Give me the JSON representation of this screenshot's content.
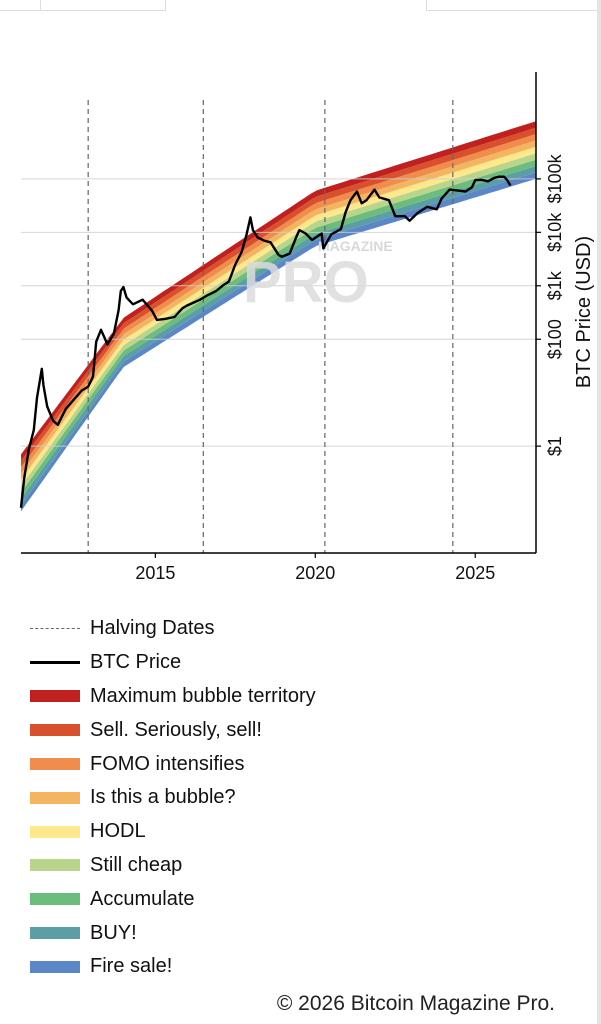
{
  "chart_data": {
    "type": "area",
    "title": "",
    "ylabel": "BTC Price (USD)",
    "y_scale": "log",
    "y_tick_labels": [
      "$1",
      "$100",
      "$1k",
      "$10k",
      "$100k"
    ],
    "y_tick_values": [
      1,
      100,
      1000,
      10000,
      100000
    ],
    "x_tick_labels": [
      "2015",
      "2020",
      "2025"
    ],
    "x_tick_values": [
      2015,
      2020,
      2025
    ],
    "xlim": [
      2010.8,
      2026.9
    ],
    "ylim": [
      0.01,
      10000000
    ],
    "halving_dates": [
      2012.9,
      2016.5,
      2020.3,
      2024.3
    ],
    "watermark": {
      "line1": "MAGAZINE",
      "line2": "PRO"
    },
    "rainbow": {
      "anchors": [
        [
          2010.8,
          0.06,
          0.7
        ],
        [
          2014.0,
          30,
          250
        ],
        [
          2020.0,
          5500,
          60000
        ],
        [
          2026.9,
          100000,
          1200000
        ]
      ],
      "bands": [
        "Fire sale!",
        "BUY!",
        "Accumulate",
        "Still cheap",
        "HODL",
        "Is this a bubble?",
        "FOMO intensifies",
        "Sell. Seriously, sell!",
        "Maximum bubble territory"
      ]
    },
    "series": [
      {
        "name": "BTC Price",
        "x": [
          2010.8,
          2010.9,
          2011.05,
          2011.2,
          2011.3,
          2011.45,
          2011.5,
          2011.62,
          2011.8,
          2011.95,
          2012.2,
          2012.5,
          2012.7,
          2012.9,
          2013.05,
          2013.15,
          2013.3,
          2013.4,
          2013.5,
          2013.7,
          2013.85,
          2013.92,
          2014.0,
          2014.1,
          2014.3,
          2014.6,
          2014.9,
          2015.05,
          2015.3,
          2015.6,
          2015.85,
          2016.0,
          2016.4,
          2016.6,
          2016.9,
          2017.1,
          2017.3,
          2017.5,
          2017.7,
          2017.85,
          2017.97,
          2018.05,
          2018.2,
          2018.4,
          2018.6,
          2018.85,
          2018.95,
          2019.2,
          2019.4,
          2019.5,
          2019.7,
          2019.9,
          2020.2,
          2020.25,
          2020.5,
          2020.8,
          2020.95,
          2021.1,
          2021.3,
          2021.45,
          2021.6,
          2021.85,
          2022.0,
          2022.3,
          2022.5,
          2022.8,
          2022.95,
          2023.2,
          2023.5,
          2023.8,
          2023.95,
          2024.2,
          2024.5,
          2024.7,
          2024.9,
          2025.0,
          2025.2,
          2025.4,
          2025.6,
          2025.75,
          2025.9,
          2026.0,
          2026.1
        ],
        "y": [
          0.07,
          0.25,
          0.9,
          2.0,
          8.0,
          28.0,
          14.0,
          5.5,
          3.0,
          2.5,
          5.0,
          8.0,
          11.0,
          13.0,
          20.0,
          90.0,
          150.0,
          110.0,
          80.0,
          125.0,
          350.0,
          800.0,
          950.0,
          600.0,
          450.0,
          550.0,
          340.0,
          230.0,
          240.0,
          260.0,
          380.0,
          430.0,
          550.0,
          650.0,
          800.0,
          1000.0,
          1200.0,
          2500.0,
          4300.0,
          9000.0,
          19000.0,
          11000.0,
          8000.0,
          7000.0,
          6500.0,
          3800.0,
          3500.0,
          4000.0,
          8000.0,
          11000.0,
          9500.0,
          7200.0,
          9500.0,
          5000.0,
          9200.0,
          11500.0,
          24000.0,
          40000.0,
          58000.0,
          35000.0,
          40000.0,
          63000.0,
          45000.0,
          40000.0,
          20000.0,
          20000.0,
          16500.0,
          23000.0,
          30000.0,
          27000.0,
          43000.0,
          63000.0,
          60000.0,
          58000.0,
          70000.0,
          95000.0,
          96000.0,
          90000.0,
          105000.0,
          110000.0,
          110000.0,
          95000.0,
          75000.0
        ]
      }
    ]
  },
  "legend": {
    "items": [
      {
        "label": "Halving Dates",
        "kind": "dash",
        "color": "#666666"
      },
      {
        "label": "BTC Price",
        "kind": "line",
        "color": "#000000"
      },
      {
        "label": "Maximum bubble territory",
        "kind": "box",
        "color": "#c0211f"
      },
      {
        "label": "Sell. Seriously, sell!",
        "kind": "box",
        "color": "#d9512c"
      },
      {
        "label": "FOMO intensifies",
        "kind": "box",
        "color": "#f08c4c"
      },
      {
        "label": "Is this a bubble?",
        "kind": "box",
        "color": "#f3b562"
      },
      {
        "label": "HODL",
        "kind": "box",
        "color": "#fde88c"
      },
      {
        "label": "Still cheap",
        "kind": "box",
        "color": "#b9d58c"
      },
      {
        "label": "Accumulate",
        "kind": "box",
        "color": "#6cbd7b"
      },
      {
        "label": "BUY!",
        "kind": "box",
        "color": "#5b9ea5"
      },
      {
        "label": "Fire sale!",
        "kind": "box",
        "color": "#5b86c8"
      }
    ]
  },
  "footer": {
    "copyright": "© 2026 Bitcoin Magazine Pro."
  }
}
